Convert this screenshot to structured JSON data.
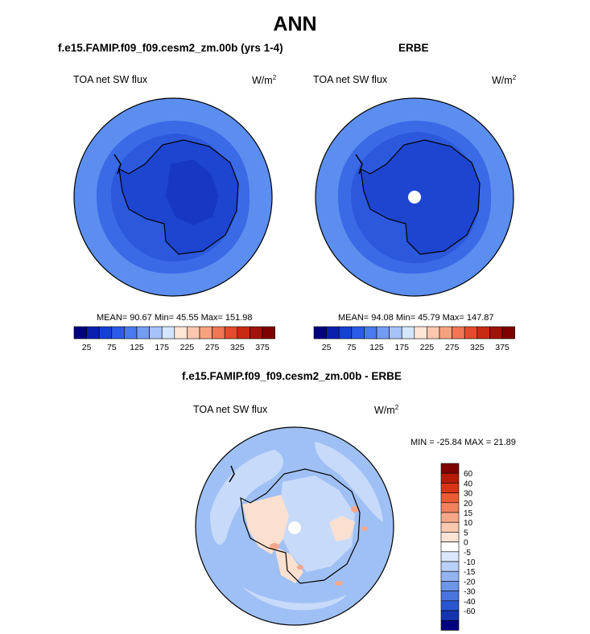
{
  "title": "ANN",
  "panels": [
    {
      "title": "f.e15.FAMIP.f09_f09.cesm2_zm.00b (yrs 1-4)",
      "variable": "TOA net SW flux",
      "units": "W/m",
      "units_exp": "2",
      "stats": {
        "mean": "90.67",
        "min": "45.55",
        "max": "151.98"
      },
      "stats_line": "MEAN=  90.67  Min=  45.55  Max=  151.98",
      "has_pole_hole": false
    },
    {
      "title": "ERBE",
      "variable": "TOA net SW flux",
      "units": "W/m",
      "units_exp": "2",
      "stats": {
        "mean": "94.08",
        "min": "45.79",
        "max": "147.87"
      },
      "stats_line": "MEAN=  94.08  Min=  45.79  Max=  147.87",
      "has_pole_hole": true
    }
  ],
  "horizontal_colorbar": {
    "colors": [
      "#000080",
      "#0a1fb0",
      "#1540d4",
      "#2a5be8",
      "#4a7af0",
      "#739cf5",
      "#a5c3fa",
      "#d4e6ff",
      "#ffe6d6",
      "#fcc7ae",
      "#f7a27f",
      "#f07655",
      "#e54a2c",
      "#c92a12",
      "#a31208",
      "#800000"
    ],
    "tick_labels": [
      "25",
      "75",
      "125",
      "175",
      "225",
      "275",
      "325",
      "375"
    ]
  },
  "difference": {
    "title": "f.e15.FAMIP.f09_f09.cesm2_zm.00b - ERBE",
    "variable": "TOA net SW flux",
    "units": "W/m",
    "units_exp": "2",
    "stats_line": "MIN = -25.84 MAX =  21.89",
    "stats": {
      "min": "-25.84",
      "max": "21.89"
    },
    "colorbar": {
      "colors": [
        "#800000",
        "#b81a0a",
        "#d93418",
        "#ec5a34",
        "#f3815e",
        "#f7a789",
        "#fbc8b0",
        "#fde4d6",
        "#ffffff",
        "#dbe7fb",
        "#b9cff6",
        "#93b4f0",
        "#6d95e8",
        "#4a75e0",
        "#2a55d0",
        "#1535b0",
        "#000080"
      ],
      "labels": [
        "60",
        "40",
        "30",
        "20",
        "15",
        "10",
        "5",
        "0",
        "-5",
        "-10",
        "-15",
        "-20",
        "-30",
        "-40",
        "-60"
      ]
    }
  },
  "map_colors": {
    "outer_ring": "#5c8ef0",
    "mid_ring": "#3a6ae6",
    "inner_ocean": "#2c58dc",
    "continent": "#1d45d0",
    "interior": "#1738c2",
    "diff_base": "#9fc0f5",
    "diff_light": "#c8dafa",
    "diff_warm": "#fbe0d0",
    "diff_warm2": "#f6a88c"
  }
}
